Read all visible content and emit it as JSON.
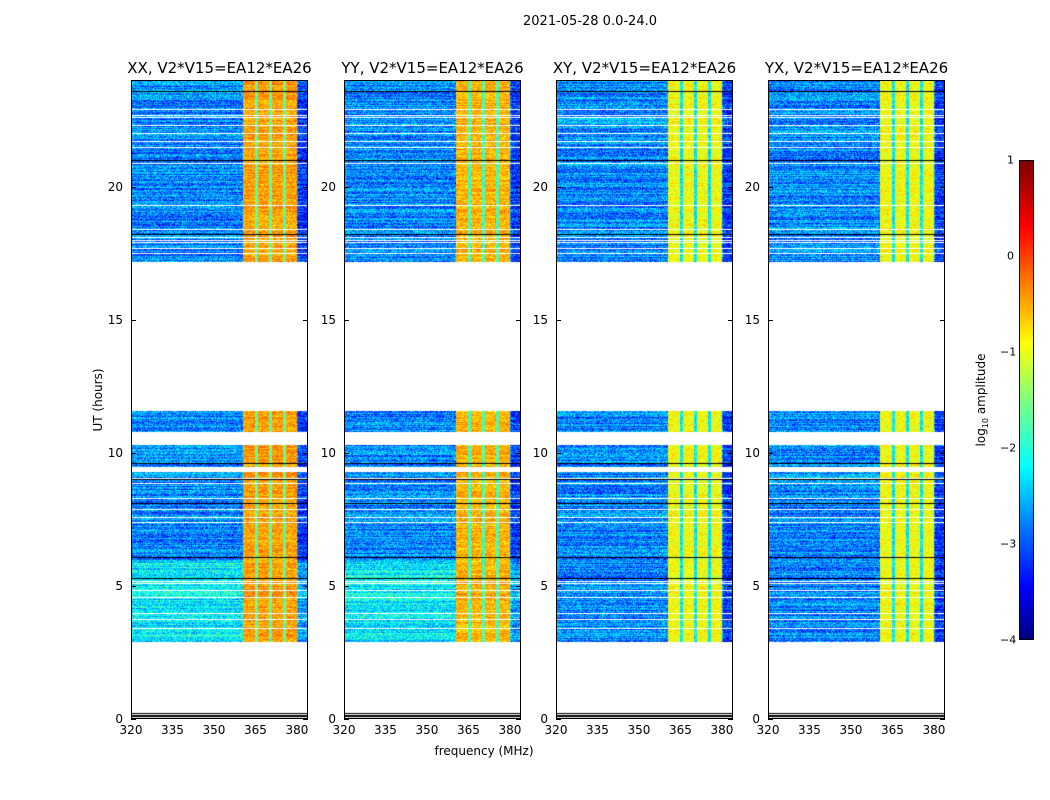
{
  "chart_data": {
    "type": "heatmap",
    "title": "2021-05-28 0.0-24.0",
    "xlabel": "frequency (MHz)",
    "ylabel": "UT (hours)",
    "xlim": [
      320,
      384
    ],
    "ylim": [
      0,
      24
    ],
    "xticks": [
      "320",
      "335",
      "350",
      "365",
      "380"
    ],
    "yticks": [
      "0",
      "5",
      "10",
      "15",
      "20"
    ],
    "panels": [
      {
        "title": "XX, V2*V15=EA12*EA26",
        "band_level": -0.4
      },
      {
        "title": "YY, V2*V15=EA12*EA26",
        "band_level": -0.5
      },
      {
        "title": "XY, V2*V15=EA12*EA26",
        "band_level": -0.9
      },
      {
        "title": "YX, V2*V15=EA12*EA26",
        "band_level": -0.9
      }
    ],
    "observed_intervals_hours": [
      [
        2.9,
        9.3
      ],
      [
        9.5,
        10.3
      ],
      [
        10.8,
        11.6
      ],
      [
        17.2,
        24.0
      ]
    ],
    "flagged_row_hours": [
      3.4,
      3.75,
      4.0,
      4.6,
      4.85,
      5.1,
      5.2,
      7.4,
      7.6,
      7.9,
      8.3,
      8.85,
      9.05,
      17.5,
      17.7,
      17.9,
      18.0,
      18.1,
      18.4,
      19.3,
      20.9,
      21.5,
      21.7,
      22.0,
      22.3,
      22.6,
      22.7,
      22.9
    ],
    "black_row_hours": [
      5.3,
      6.1,
      8.1,
      9.0,
      9.6,
      18.2,
      21.0,
      22.3,
      23.6
    ],
    "bright_band_mhz": [
      360.4,
      380.0
    ],
    "band_stripes_mhz": [
      365.1,
      370.2,
      375.2
    ],
    "background_level": -2.7,
    "colorbar": {
      "label": "log₁₀ amplitude",
      "range": [
        -4,
        1
      ],
      "ticks": [
        "1",
        "0",
        "−1",
        "−2",
        "−3",
        "−4"
      ],
      "colormap": "jet"
    }
  }
}
